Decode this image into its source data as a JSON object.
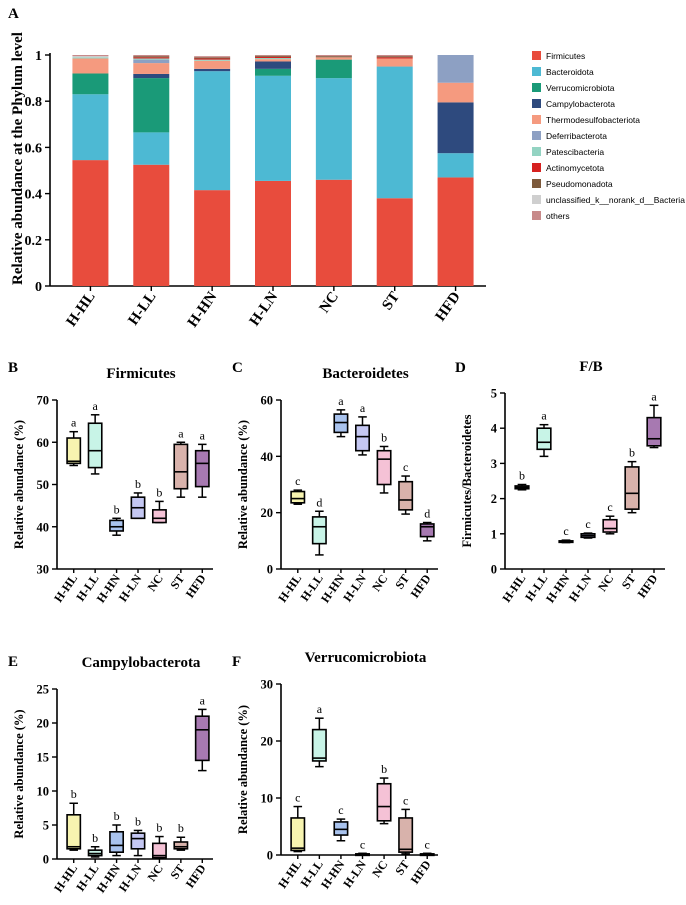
{
  "chart_data": [
    {
      "panel": "A",
      "type": "bar",
      "stacked": true,
      "ylabel": "Relative abundance at the Phylum level",
      "ylim": [
        0,
        1
      ],
      "yticks": [
        0,
        0.2,
        0.4,
        0.6,
        0.8,
        1
      ],
      "ytick_labels": [
        "0",
        "0.2",
        "0.4",
        "0.6",
        "0.8",
        "1"
      ],
      "categories": [
        "H-HL",
        "H-LL",
        "H-HN",
        "H-LN",
        "NC",
        "ST",
        "HFD"
      ],
      "legend_position": "right",
      "series": [
        {
          "name": "Firmicutes",
          "color": "#e84c3d",
          "values": [
            0.545,
            0.525,
            0.415,
            0.455,
            0.46,
            0.38,
            0.47
          ]
        },
        {
          "name": "Bacteroidota",
          "color": "#4db9d3",
          "values": [
            0.285,
            0.14,
            0.515,
            0.455,
            0.44,
            0.57,
            0.105
          ]
        },
        {
          "name": "Verrucomicrobiota",
          "color": "#1a9a78",
          "values": [
            0.09,
            0.235,
            0.0,
            0.03,
            0.08,
            0.0,
            0.0
          ]
        },
        {
          "name": "Campylobacterota",
          "color": "#2e4a7e",
          "values": [
            0.0,
            0.018,
            0.01,
            0.032,
            0.0,
            0.0,
            0.22
          ]
        },
        {
          "name": "Thermodesulfobacteriota",
          "color": "#f59a7f",
          "values": [
            0.065,
            0.047,
            0.035,
            0.01,
            0.01,
            0.035,
            0.085
          ]
        },
        {
          "name": "Deferribacterota",
          "color": "#8da0c3",
          "values": [
            0.0,
            0.015,
            0.0,
            0.0,
            0.0,
            0.0,
            0.12
          ]
        },
        {
          "name": "Patescibacteria",
          "color": "#93d3c2",
          "values": [
            0.005,
            0.005,
            0.005,
            0.005,
            0.0,
            0.0,
            0.0
          ]
        },
        {
          "name": "Actinomycetota",
          "color": "#d62120",
          "values": [
            0.0,
            0.005,
            0.005,
            0.005,
            0.0,
            0.005,
            0.0
          ]
        },
        {
          "name": "Pseudomonadota",
          "color": "#7d5a3c",
          "values": [
            0.0,
            0.005,
            0.005,
            0.005,
            0.005,
            0.005,
            0.0
          ]
        },
        {
          "name": "unclassified_k__norank_d__Bacteria",
          "color": "#cfcfcf",
          "values": [
            0.005,
            0.0,
            0.0,
            0.0,
            0.0,
            0.0,
            0.0
          ]
        },
        {
          "name": "others",
          "color": "#c88a8a",
          "values": [
            0.005,
            0.005,
            0.005,
            0.003,
            0.005,
            0.005,
            0.0
          ]
        }
      ]
    },
    {
      "panel": "B",
      "type": "box",
      "title": "Firmicutes",
      "ylabel": "Relative abundance (%)",
      "ylim": [
        30,
        70
      ],
      "yticks": [
        30,
        40,
        50,
        60,
        70
      ],
      "categories": [
        "H-HL",
        "H-LL",
        "H-HN",
        "H-LN",
        "NC",
        "ST",
        "HFD"
      ],
      "boxes": [
        {
          "min": 54.5,
          "q1": 55,
          "median": 55.5,
          "q3": 61,
          "max": 62.5,
          "letter": "a"
        },
        {
          "min": 52.5,
          "q1": 54,
          "median": 58,
          "q3": 64.5,
          "max": 66.5,
          "letter": "a"
        },
        {
          "min": 38,
          "q1": 39,
          "median": 40,
          "q3": 41.5,
          "max": 42,
          "letter": "b"
        },
        {
          "min": 42,
          "q1": 42,
          "median": 44.5,
          "q3": 47,
          "max": 48,
          "letter": "b"
        },
        {
          "min": 41,
          "q1": 41,
          "median": 42,
          "q3": 44,
          "max": 46,
          "letter": "b"
        },
        {
          "min": 47,
          "q1": 49,
          "median": 53,
          "q3": 59.5,
          "max": 60,
          "letter": "a"
        },
        {
          "min": 47,
          "q1": 49.5,
          "median": 55,
          "q3": 58,
          "max": 59.5,
          "letter": "a"
        }
      ]
    },
    {
      "panel": "C",
      "type": "box",
      "title": "Bacteroidetes",
      "ylabel": "Relative abundance (%)",
      "ylim": [
        0,
        60
      ],
      "yticks": [
        0,
        20,
        40,
        60
      ],
      "categories": [
        "H-HL",
        "H-LL",
        "H-HN",
        "H-LN",
        "NC",
        "ST",
        "HFD"
      ],
      "boxes": [
        {
          "min": 23,
          "q1": 23.5,
          "median": 25,
          "q3": 27.5,
          "max": 28,
          "letter": "c"
        },
        {
          "min": 5,
          "q1": 9,
          "median": 15,
          "q3": 18.5,
          "max": 20.5,
          "letter": "d"
        },
        {
          "min": 47,
          "q1": 48.5,
          "median": 52,
          "q3": 55,
          "max": 56.5,
          "letter": "a"
        },
        {
          "min": 40.5,
          "q1": 42,
          "median": 47,
          "q3": 51,
          "max": 54,
          "letter": "a"
        },
        {
          "min": 27,
          "q1": 30,
          "median": 39,
          "q3": 42,
          "max": 43.5,
          "letter": "b"
        },
        {
          "min": 19.5,
          "q1": 21,
          "median": 24.5,
          "q3": 31,
          "max": 33,
          "letter": "c"
        },
        {
          "min": 10,
          "q1": 11.5,
          "median": 15,
          "q3": 16,
          "max": 16.5,
          "letter": "d"
        }
      ]
    },
    {
      "panel": "D",
      "type": "box",
      "title": "F/B",
      "ylabel": "Firmicutes/Bacteroidetes",
      "ylim": [
        0,
        5
      ],
      "yticks": [
        0,
        1,
        2,
        3,
        4,
        5
      ],
      "categories": [
        "H-HL",
        "H-LL",
        "H-HN",
        "H-LN",
        "NC",
        "ST",
        "HFD"
      ],
      "boxes": [
        {
          "min": 2.25,
          "q1": 2.28,
          "median": 2.32,
          "q3": 2.36,
          "max": 2.4,
          "letter": "b"
        },
        {
          "min": 3.2,
          "q1": 3.4,
          "median": 3.6,
          "q3": 4.0,
          "max": 4.1,
          "letter": "a"
        },
        {
          "min": 0.75,
          "q1": 0.77,
          "median": 0.78,
          "q3": 0.8,
          "max": 0.82,
          "letter": "c"
        },
        {
          "min": 0.88,
          "q1": 0.9,
          "median": 0.95,
          "q3": 1.0,
          "max": 1.02,
          "letter": "c"
        },
        {
          "min": 1.0,
          "q1": 1.05,
          "median": 1.15,
          "q3": 1.4,
          "max": 1.5,
          "letter": "c"
        },
        {
          "min": 1.6,
          "q1": 1.7,
          "median": 2.15,
          "q3": 2.9,
          "max": 3.05,
          "letter": "b"
        },
        {
          "min": 3.45,
          "q1": 3.5,
          "median": 3.7,
          "q3": 4.3,
          "max": 4.65,
          "letter": "a"
        }
      ]
    },
    {
      "panel": "E",
      "type": "box",
      "title": "Campylobacterota",
      "ylabel": "Relative abundance (%)",
      "ylim": [
        0,
        25
      ],
      "yticks": [
        0,
        5,
        10,
        15,
        20,
        25
      ],
      "categories": [
        "H-HL",
        "H-LL",
        "H-HN",
        "H-LN",
        "NC",
        "ST",
        "HFD"
      ],
      "boxes": [
        {
          "min": 1.3,
          "q1": 1.5,
          "median": 1.8,
          "q3": 6.5,
          "max": 8.2,
          "letter": "b"
        },
        {
          "min": 0.3,
          "q1": 0.5,
          "median": 0.8,
          "q3": 1.3,
          "max": 1.8,
          "letter": "b"
        },
        {
          "min": 0.5,
          "q1": 1.0,
          "median": 2.0,
          "q3": 4.0,
          "max": 5.0,
          "letter": "b"
        },
        {
          "min": 0.5,
          "q1": 1.5,
          "median": 3.0,
          "q3": 3.8,
          "max": 4.2,
          "letter": "b"
        },
        {
          "min": 0.1,
          "q1": 0.2,
          "median": 0.5,
          "q3": 2.3,
          "max": 3.3,
          "letter": "b"
        },
        {
          "min": 1.3,
          "q1": 1.5,
          "median": 1.8,
          "q3": 2.5,
          "max": 3.2,
          "letter": "b"
        },
        {
          "min": 13,
          "q1": 14.5,
          "median": 19,
          "q3": 21,
          "max": 22,
          "letter": "a"
        }
      ]
    },
    {
      "panel": "F",
      "type": "box",
      "title": "Verrucomicrobiota",
      "ylabel": "Relative abundance (%)",
      "ylim": [
        0,
        30
      ],
      "yticks": [
        0,
        10,
        20,
        30
      ],
      "categories": [
        "H-HL",
        "H-LL",
        "H-HN",
        "H-LN",
        "NC",
        "ST",
        "HFD"
      ],
      "boxes": [
        {
          "min": 0.6,
          "q1": 0.8,
          "median": 1.2,
          "q3": 6.5,
          "max": 8.5,
          "letter": "c"
        },
        {
          "min": 15.5,
          "q1": 16.5,
          "median": 17,
          "q3": 22,
          "max": 24,
          "letter": "a"
        },
        {
          "min": 2.5,
          "q1": 3.5,
          "median": 4.5,
          "q3": 5.8,
          "max": 6.3,
          "letter": "c"
        },
        {
          "min": 0,
          "q1": 0.05,
          "median": 0.1,
          "q3": 0.2,
          "max": 0.3,
          "letter": "c"
        },
        {
          "min": 5.5,
          "q1": 6.0,
          "median": 8.5,
          "q3": 12.5,
          "max": 13.5,
          "letter": "b"
        },
        {
          "min": 0.2,
          "q1": 0.5,
          "median": 1.0,
          "q3": 6.5,
          "max": 8.0,
          "letter": "c"
        },
        {
          "min": 0,
          "q1": 0.05,
          "median": 0.1,
          "q3": 0.2,
          "max": 0.3,
          "letter": "c"
        }
      ]
    }
  ],
  "box_colors": [
    "#f7f4b0",
    "#c8f4e7",
    "#a9c3ee",
    "#c4c7f2",
    "#f5c2d6",
    "#d8b2ab",
    "#a779b1"
  ]
}
